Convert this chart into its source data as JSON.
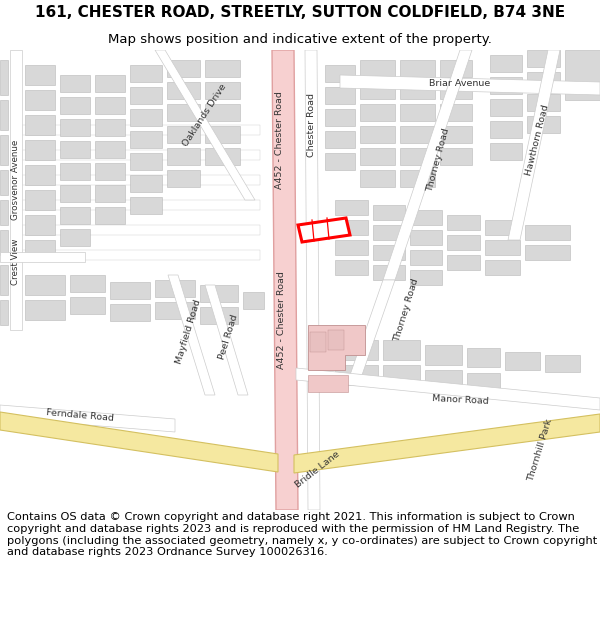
{
  "title_line1": "161, CHESTER ROAD, STREETLY, SUTTON COLDFIELD, B74 3NE",
  "title_line2": "Map shows position and indicative extent of the property.",
  "footer": "Contains OS data © Crown copyright and database right 2021. This information is subject to Crown copyright and database rights 2023 and is reproduced with the permission of HM Land Registry. The polygons (including the associated geometry, namely x, y co-ordinates) are subject to Crown copyright and database rights 2023 Ordnance Survey 100026316.",
  "bg_color": "#f2f2f0",
  "road_fill": "#ffffff",
  "road_edge": "#cccccc",
  "aroad_fill": "#f7d0d0",
  "aroad_edge": "#e0a0a0",
  "yellow_fill": "#f5e8a0",
  "yellow_edge": "#d4c060",
  "building_fill": "#d8d8d8",
  "building_edge": "#b8b8b8",
  "pink_fill": "#f0c8c8",
  "pink_edge": "#c09090",
  "plot_fill": "#ffffff",
  "plot_edge": "#ff0000",
  "text_color": "#333333",
  "title_fs": 11,
  "sub_fs": 9.5,
  "footer_fs": 8.2,
  "label_fs": 6.8
}
